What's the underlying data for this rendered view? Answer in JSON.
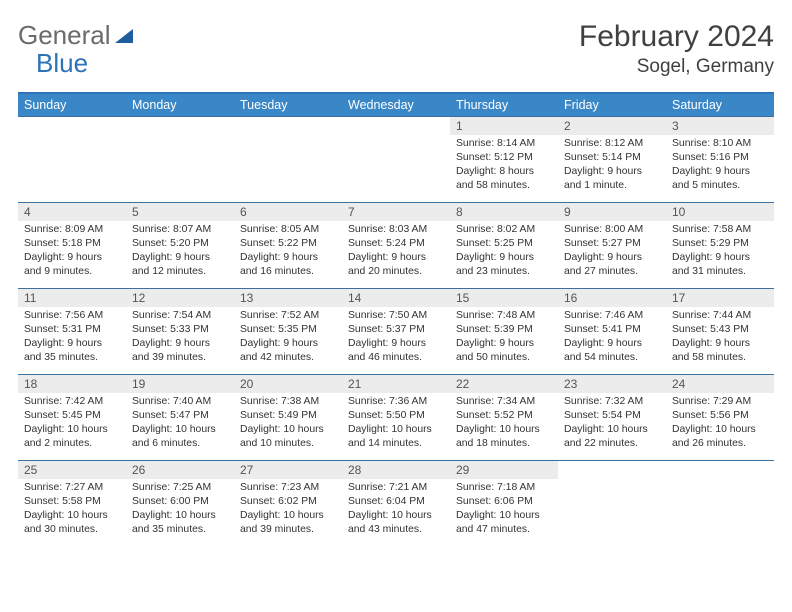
{
  "logo": {
    "text1": "General",
    "text2": "Blue"
  },
  "title": "February 2024",
  "location": "Sogel, Germany",
  "colors": {
    "header_bg": "#3a87c8",
    "header_text": "#ffffff",
    "border": "#3a6fa0",
    "daynum_bg": "#ececec",
    "text": "#333333"
  },
  "weekdays": [
    "Sunday",
    "Monday",
    "Tuesday",
    "Wednesday",
    "Thursday",
    "Friday",
    "Saturday"
  ],
  "weeks": [
    [
      {
        "n": "",
        "sunrise": "",
        "sunset": "",
        "daylight": ""
      },
      {
        "n": "",
        "sunrise": "",
        "sunset": "",
        "daylight": ""
      },
      {
        "n": "",
        "sunrise": "",
        "sunset": "",
        "daylight": ""
      },
      {
        "n": "",
        "sunrise": "",
        "sunset": "",
        "daylight": ""
      },
      {
        "n": "1",
        "sunrise": "Sunrise: 8:14 AM",
        "sunset": "Sunset: 5:12 PM",
        "daylight": "Daylight: 8 hours and 58 minutes."
      },
      {
        "n": "2",
        "sunrise": "Sunrise: 8:12 AM",
        "sunset": "Sunset: 5:14 PM",
        "daylight": "Daylight: 9 hours and 1 minute."
      },
      {
        "n": "3",
        "sunrise": "Sunrise: 8:10 AM",
        "sunset": "Sunset: 5:16 PM",
        "daylight": "Daylight: 9 hours and 5 minutes."
      }
    ],
    [
      {
        "n": "4",
        "sunrise": "Sunrise: 8:09 AM",
        "sunset": "Sunset: 5:18 PM",
        "daylight": "Daylight: 9 hours and 9 minutes."
      },
      {
        "n": "5",
        "sunrise": "Sunrise: 8:07 AM",
        "sunset": "Sunset: 5:20 PM",
        "daylight": "Daylight: 9 hours and 12 minutes."
      },
      {
        "n": "6",
        "sunrise": "Sunrise: 8:05 AM",
        "sunset": "Sunset: 5:22 PM",
        "daylight": "Daylight: 9 hours and 16 minutes."
      },
      {
        "n": "7",
        "sunrise": "Sunrise: 8:03 AM",
        "sunset": "Sunset: 5:24 PM",
        "daylight": "Daylight: 9 hours and 20 minutes."
      },
      {
        "n": "8",
        "sunrise": "Sunrise: 8:02 AM",
        "sunset": "Sunset: 5:25 PM",
        "daylight": "Daylight: 9 hours and 23 minutes."
      },
      {
        "n": "9",
        "sunrise": "Sunrise: 8:00 AM",
        "sunset": "Sunset: 5:27 PM",
        "daylight": "Daylight: 9 hours and 27 minutes."
      },
      {
        "n": "10",
        "sunrise": "Sunrise: 7:58 AM",
        "sunset": "Sunset: 5:29 PM",
        "daylight": "Daylight: 9 hours and 31 minutes."
      }
    ],
    [
      {
        "n": "11",
        "sunrise": "Sunrise: 7:56 AM",
        "sunset": "Sunset: 5:31 PM",
        "daylight": "Daylight: 9 hours and 35 minutes."
      },
      {
        "n": "12",
        "sunrise": "Sunrise: 7:54 AM",
        "sunset": "Sunset: 5:33 PM",
        "daylight": "Daylight: 9 hours and 39 minutes."
      },
      {
        "n": "13",
        "sunrise": "Sunrise: 7:52 AM",
        "sunset": "Sunset: 5:35 PM",
        "daylight": "Daylight: 9 hours and 42 minutes."
      },
      {
        "n": "14",
        "sunrise": "Sunrise: 7:50 AM",
        "sunset": "Sunset: 5:37 PM",
        "daylight": "Daylight: 9 hours and 46 minutes."
      },
      {
        "n": "15",
        "sunrise": "Sunrise: 7:48 AM",
        "sunset": "Sunset: 5:39 PM",
        "daylight": "Daylight: 9 hours and 50 minutes."
      },
      {
        "n": "16",
        "sunrise": "Sunrise: 7:46 AM",
        "sunset": "Sunset: 5:41 PM",
        "daylight": "Daylight: 9 hours and 54 minutes."
      },
      {
        "n": "17",
        "sunrise": "Sunrise: 7:44 AM",
        "sunset": "Sunset: 5:43 PM",
        "daylight": "Daylight: 9 hours and 58 minutes."
      }
    ],
    [
      {
        "n": "18",
        "sunrise": "Sunrise: 7:42 AM",
        "sunset": "Sunset: 5:45 PM",
        "daylight": "Daylight: 10 hours and 2 minutes."
      },
      {
        "n": "19",
        "sunrise": "Sunrise: 7:40 AM",
        "sunset": "Sunset: 5:47 PM",
        "daylight": "Daylight: 10 hours and 6 minutes."
      },
      {
        "n": "20",
        "sunrise": "Sunrise: 7:38 AM",
        "sunset": "Sunset: 5:49 PM",
        "daylight": "Daylight: 10 hours and 10 minutes."
      },
      {
        "n": "21",
        "sunrise": "Sunrise: 7:36 AM",
        "sunset": "Sunset: 5:50 PM",
        "daylight": "Daylight: 10 hours and 14 minutes."
      },
      {
        "n": "22",
        "sunrise": "Sunrise: 7:34 AM",
        "sunset": "Sunset: 5:52 PM",
        "daylight": "Daylight: 10 hours and 18 minutes."
      },
      {
        "n": "23",
        "sunrise": "Sunrise: 7:32 AM",
        "sunset": "Sunset: 5:54 PM",
        "daylight": "Daylight: 10 hours and 22 minutes."
      },
      {
        "n": "24",
        "sunrise": "Sunrise: 7:29 AM",
        "sunset": "Sunset: 5:56 PM",
        "daylight": "Daylight: 10 hours and 26 minutes."
      }
    ],
    [
      {
        "n": "25",
        "sunrise": "Sunrise: 7:27 AM",
        "sunset": "Sunset: 5:58 PM",
        "daylight": "Daylight: 10 hours and 30 minutes."
      },
      {
        "n": "26",
        "sunrise": "Sunrise: 7:25 AM",
        "sunset": "Sunset: 6:00 PM",
        "daylight": "Daylight: 10 hours and 35 minutes."
      },
      {
        "n": "27",
        "sunrise": "Sunrise: 7:23 AM",
        "sunset": "Sunset: 6:02 PM",
        "daylight": "Daylight: 10 hours and 39 minutes."
      },
      {
        "n": "28",
        "sunrise": "Sunrise: 7:21 AM",
        "sunset": "Sunset: 6:04 PM",
        "daylight": "Daylight: 10 hours and 43 minutes."
      },
      {
        "n": "29",
        "sunrise": "Sunrise: 7:18 AM",
        "sunset": "Sunset: 6:06 PM",
        "daylight": "Daylight: 10 hours and 47 minutes."
      },
      {
        "n": "",
        "sunrise": "",
        "sunset": "",
        "daylight": ""
      },
      {
        "n": "",
        "sunrise": "",
        "sunset": "",
        "daylight": ""
      }
    ]
  ]
}
